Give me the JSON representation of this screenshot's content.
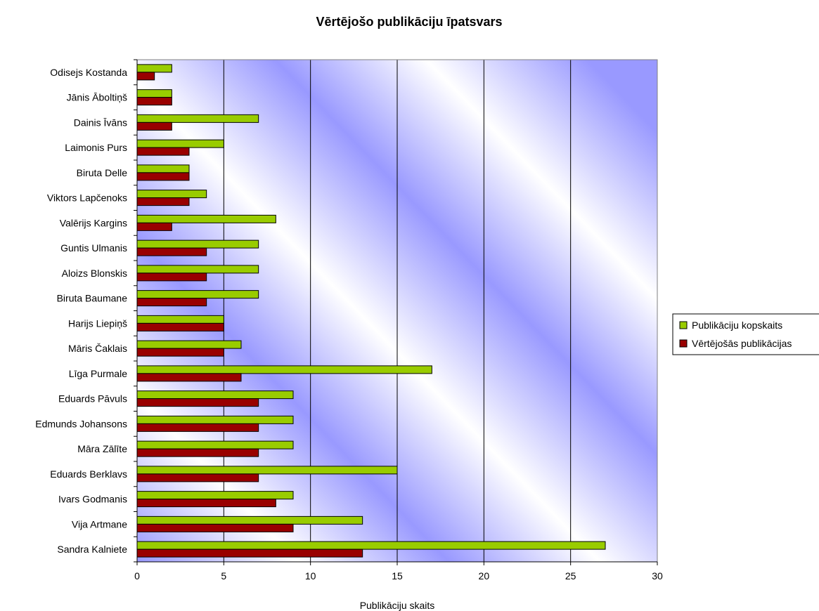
{
  "chart_data": {
    "type": "bar",
    "orientation": "horizontal",
    "title": "Vērtējošo publikāciju īpatsvars",
    "xlabel": "Publikāciju skaits",
    "ylabel": "",
    "xlim": [
      0,
      30
    ],
    "x_ticks": [
      0,
      5,
      10,
      15,
      20,
      25,
      30
    ],
    "grid": "vertical",
    "legend_position": "right",
    "categories": [
      "Odisejs Kostanda",
      "Jānis Āboltiņš",
      "Dainis Īvāns",
      "Laimonis Purs",
      "Biruta Delle",
      "Viktors Lapčenoks",
      "Valērijs Kargins",
      "Guntis Ulmanis",
      "Aloizs Blonskis",
      "Biruta Baumane",
      "Harijs Liepiņš",
      "Māris Čaklais",
      "Līga Purmale",
      "Eduards Pāvuls",
      "Edmunds Johansons",
      "Māra Zālīte",
      "Eduards Berklavs",
      "Ivars Godmanis",
      "Vija Artmane",
      "Sandra Kalniete"
    ],
    "series": [
      {
        "name": "Publikāciju kopskaits",
        "color": "#99CC00",
        "values": [
          2,
          2,
          7,
          5,
          3,
          4,
          8,
          7,
          7,
          7,
          5,
          6,
          17,
          9,
          9,
          9,
          15,
          9,
          13,
          27
        ]
      },
      {
        "name": "Vērtējošās publikācijas",
        "color": "#990000",
        "values": [
          1,
          2,
          2,
          3,
          3,
          3,
          2,
          4,
          4,
          4,
          5,
          5,
          6,
          7,
          7,
          7,
          7,
          8,
          9,
          13
        ]
      }
    ],
    "plot_background": "#9999FF"
  }
}
